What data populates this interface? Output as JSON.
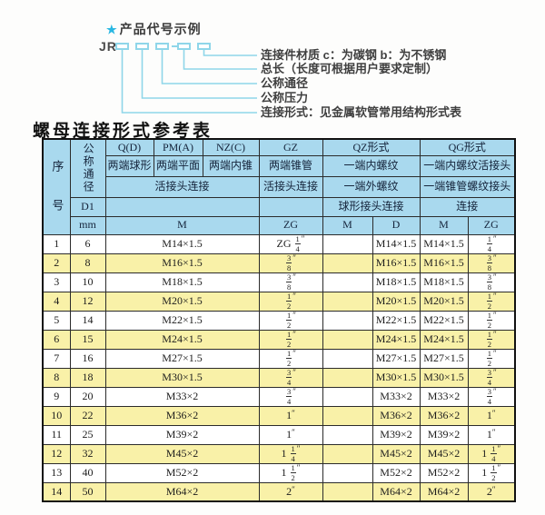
{
  "colors": {
    "header_bg": "#a9d9ee",
    "row_alt_bg": "#f9f1a8",
    "row_bg": "#ffffff",
    "accent_cyan": "#29b7e2",
    "line_cyan": "#8fd6e9",
    "border": "#2b2b2b"
  },
  "diagram": {
    "star": "★",
    "title": "产品代号示例",
    "prefix": "JR",
    "labels": [
      "连接件材质  c：为碳钢  b：为不锈钢",
      "总长（长度可根据用户要求定制）",
      "公称通径",
      "公称压力",
      "连接形式：见金属软管常用结构形式表"
    ]
  },
  "table": {
    "title": "螺母连接形式参考表",
    "columns": {
      "serial": "序号",
      "nominal_diameter": "公称通径",
      "d1": "D1",
      "mm": "mm",
      "q": {
        "code": "Q(D)",
        "ends": "两端球形"
      },
      "pm": {
        "code": "PM(A)",
        "ends": "两端平面"
      },
      "nz": {
        "code": "NZ(C)",
        "ends": "两端内锥"
      },
      "gz": {
        "code": "GZ",
        "ends": "两端锥管",
        "connection": "活接头连接",
        "unit": "ZG"
      },
      "qz": {
        "code": "QZ形式",
        "end1": "一端内螺纹",
        "end2": "一端外螺纹",
        "connection": "球形接头连接",
        "unit_m": "M",
        "unit_d": "D"
      },
      "qg": {
        "code": "QG形式",
        "end1": "一端内螺纹活接头",
        "end2": "一端锥管螺纹接头",
        "connection": "连接",
        "unit_m": "M",
        "unit_zg": "ZG"
      },
      "qpn_connection": "活接头连接",
      "m": "M"
    },
    "rows": [
      {
        "no": "1",
        "dn": "6",
        "m": "M14×1.5",
        "gz_zg": "ZG 1/4\"",
        "qz_m": "",
        "qz_d": "M14×1.5",
        "qg_m": "M14×1.5",
        "qg_zg": "1/4\""
      },
      {
        "no": "2",
        "dn": "8",
        "m": "M16×1.5",
        "gz_zg": "3/8\"",
        "qz_m": "",
        "qz_d": "M16×1.5",
        "qg_m": "M16×1.5",
        "qg_zg": "3/8\""
      },
      {
        "no": "3",
        "dn": "10",
        "m": "M18×1.5",
        "gz_zg": "3/8\"",
        "qz_m": "",
        "qz_d": "M18×1.5",
        "qg_m": "M18×1.5",
        "qg_zg": "3/8\""
      },
      {
        "no": "4",
        "dn": "12",
        "m": "M20×1.5",
        "gz_zg": "1/2\"",
        "qz_m": "",
        "qz_d": "M20×1.5",
        "qg_m": "M20×1.5",
        "qg_zg": "1/2\""
      },
      {
        "no": "5",
        "dn": "14",
        "m": "M22×1.5",
        "gz_zg": "1/2\"",
        "qz_m": "",
        "qz_d": "M22×1.5",
        "qg_m": "M22×1.5",
        "qg_zg": "1/2\""
      },
      {
        "no": "6",
        "dn": "15",
        "m": "M24×1.5",
        "gz_zg": "1/2\"",
        "qz_m": "",
        "qz_d": "M24×1.5",
        "qg_m": "M24×1.5",
        "qg_zg": "1/2\""
      },
      {
        "no": "7",
        "dn": "16",
        "m": "M27×1.5",
        "gz_zg": "1/2\"",
        "qz_m": "",
        "qz_d": "M27×1.5",
        "qg_m": "M27×1.5",
        "qg_zg": "1/2\""
      },
      {
        "no": "8",
        "dn": "18",
        "m": "M30×1.5",
        "gz_zg": "3/4\"",
        "qz_m": "",
        "qz_d": "M30×1.5",
        "qg_m": "M30×1.5",
        "qg_zg": "3/4\""
      },
      {
        "no": "9",
        "dn": "20",
        "m": "M33×2",
        "gz_zg": "3/4\"",
        "qz_m": "",
        "qz_d": "M33×2",
        "qg_m": "M33×2",
        "qg_zg": "3/4\""
      },
      {
        "no": "10",
        "dn": "22",
        "m": "M36×2",
        "gz_zg": "1\"",
        "qz_m": "",
        "qz_d": "M36×2",
        "qg_m": "M36×2",
        "qg_zg": "1\""
      },
      {
        "no": "11",
        "dn": "25",
        "m": "M39×2",
        "gz_zg": "1\"",
        "qz_m": "",
        "qz_d": "M39×2",
        "qg_m": "M39×2",
        "qg_zg": "1\""
      },
      {
        "no": "12",
        "dn": "32",
        "m": "M45×2",
        "gz_zg": "1 1/4\"",
        "qz_m": "",
        "qz_d": "M45×2",
        "qg_m": "M45×2",
        "qg_zg": "1 1/4\""
      },
      {
        "no": "13",
        "dn": "40",
        "m": "M52×2",
        "gz_zg": "1 1/2\"",
        "qz_m": "",
        "qz_d": "M52×2",
        "qg_m": "M52×2",
        "qg_zg": "1 1/2\""
      },
      {
        "no": "14",
        "dn": "50",
        "m": "M64×2",
        "gz_zg": "2\"",
        "qz_m": "",
        "qz_d": "M64×2",
        "qg_m": "M64×2",
        "qg_zg": "2\""
      }
    ]
  }
}
